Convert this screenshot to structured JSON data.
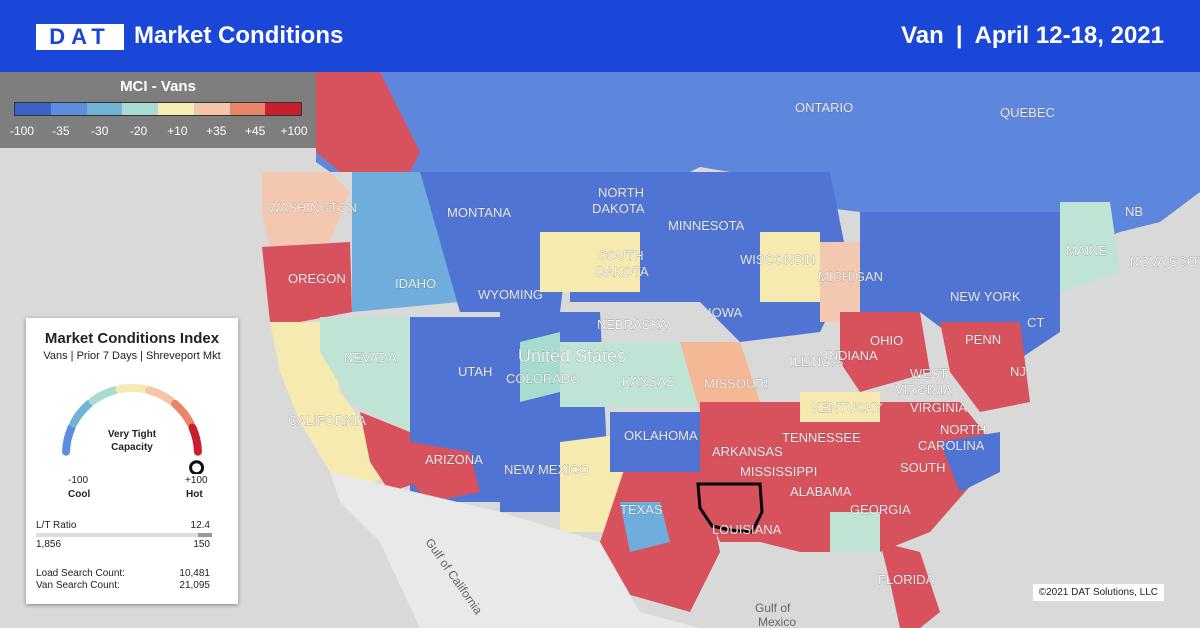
{
  "header": {
    "logo": "DAT",
    "title": "Market Conditions",
    "equipment": "Van",
    "separator": "|",
    "date_range": "April 12-18, 2021"
  },
  "legend": {
    "title": "MCI - Vans",
    "ticks": [
      "-100",
      "-35",
      "-30",
      "-20",
      "+10",
      "+35",
      "+45",
      "+100"
    ],
    "colors": [
      "#3a62c8",
      "#5c8de0",
      "#6fb3d6",
      "#a8dcd1",
      "#f6eeb0",
      "#f6c4a6",
      "#e8866a",
      "#c81e2e"
    ]
  },
  "card": {
    "title": "Market Conditions Index",
    "subtitle": "Vans | Prior 7 Days | Shreveport Mkt",
    "gauge_text_line1": "Very Tight",
    "gauge_text_line2": "Capacity",
    "gauge_value": 100,
    "min_value": "-100",
    "max_value": "+100",
    "min_label": "Cool",
    "max_label": "Hot",
    "lt_ratio_label": "L/T Ratio",
    "lt_ratio_value": "12.4",
    "loads_value": "1,856",
    "trucks_value": "150",
    "load_search_label": "Load Search Count:",
    "load_search_value": "10,481",
    "van_search_label": "Van Search Count:",
    "van_search_value": "21,095"
  },
  "map_labels": {
    "ontario": "ONTARIO",
    "quebec": "QUEBEC",
    "nb": "NB",
    "nova_scotia": "NOVA SCOTIA",
    "washington": "WASHINGTON",
    "montana": "MONTANA",
    "north_dakota_1": "NORTH",
    "north_dakota_2": "DAKOTA",
    "minnesota": "MINNESOTA",
    "oregon": "OREGON",
    "idaho": "IDAHO",
    "south_dakota_1": "SOUTH",
    "south_dakota_2": "DAKOTA",
    "wisconsin": "WISCONSIN",
    "michigan": "MICHIGAN",
    "new_york": "NEW YORK",
    "maine": "MAINE",
    "wyoming": "WYOMING",
    "iowa": "IOWA",
    "nebraska": "NEBRASKA",
    "nevada": "NEVADA",
    "utah": "UTAH",
    "colorado": "COLORADO",
    "united_states": "United States",
    "kansas": "KANSAS",
    "missouri": "MISSOURI",
    "illinois": "ILLINOIS",
    "indiana": "INDIANA",
    "ohio": "OHIO",
    "penn": "PENN",
    "west_virginia_1": "WEST",
    "west_virginia_2": "VIRGINIA",
    "virginia": "VIRGINIA",
    "nj": "NJ",
    "ct": "CT",
    "kentucky": "KENTUCKY",
    "california": "CALIFORNIA",
    "arizona": "ARIZONA",
    "new_mexico": "NEW MEXICO",
    "oklahoma": "OKLAHOMA",
    "arkansas": "ARKANSAS",
    "tennessee": "TENNESSEE",
    "north_carolina_1": "NORTH",
    "north_carolina_2": "CAROLINA",
    "south_carolina": "SOUTH",
    "texas": "TEXAS",
    "mississippi": "MISSISSIPPI",
    "alabama": "ALABAMA",
    "georgia": "GEORGIA",
    "louisiana": "LOUISIANA",
    "florida": "FLORIDA",
    "gulf_of_mexico_1": "Gulf of",
    "gulf_of_mexico_2": "Mexico",
    "gulf_of_california": "Gulf of California"
  },
  "credit": "©2021 DAT Solutions, LLC"
}
